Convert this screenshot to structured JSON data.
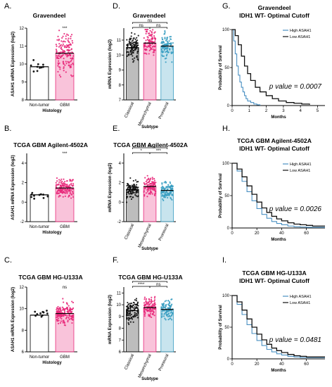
{
  "panels": [
    {
      "letter": "A.",
      "title": "Gravendeel"
    },
    {
      "letter": "B.",
      "title": "TCGA GBM Agilent-4502A"
    },
    {
      "letter": "C.",
      "title": "TCGA GBM HG-U133A"
    },
    {
      "letter": "D.",
      "title": "Gravendeel"
    },
    {
      "letter": "E.",
      "title": "TCGA GBM Agilent-4502A"
    },
    {
      "letter": "F.",
      "title": "TCGA GBM HG-U133A"
    },
    {
      "letter": "G.",
      "title": "Gravendeel",
      "title2": "IDH1 WT- Optimal Cutoff"
    },
    {
      "letter": "H.",
      "title": "TCGA GBM Agilent-4502A",
      "title2": "IDH1 WT- Optimal Cutoff"
    },
    {
      "letter": "I.",
      "title": "TCGA GBM HG-U133A",
      "title2": "IDH1 WT- Optimal Cutoff"
    }
  ],
  "chart_data": [
    {
      "id": "A",
      "type": "bar",
      "categories": [
        "Non-tumor",
        "GBM"
      ],
      "values": [
        9.85,
        10.6
      ],
      "ylim": [
        8,
        12
      ],
      "yticks": [
        8,
        9,
        10,
        11,
        12
      ],
      "xlabel": "Histology",
      "ylabel": "ASAH1 mRNA Expression (log2)",
      "annotations": [
        "***"
      ],
      "colors": [
        "#ffffff",
        "#e8297a"
      ]
    },
    {
      "id": "B",
      "type": "bar",
      "categories": [
        "Non-tumor",
        "GBM"
      ],
      "values": [
        0.75,
        1.45
      ],
      "ylim": [
        -2,
        5
      ],
      "yticks": [
        -2,
        0,
        2,
        4
      ],
      "xlabel": "Histology",
      "ylabel": "ASAH1 mRNA  Expression (log2)",
      "annotations": [
        "***"
      ],
      "colors": [
        "#ffffff",
        "#e8297a"
      ]
    },
    {
      "id": "C",
      "type": "bar",
      "categories": [
        "Non-tumor",
        "GBM"
      ],
      "values": [
        9.4,
        9.55
      ],
      "ylim": [
        6,
        12
      ],
      "yticks": [
        6,
        8,
        10,
        12
      ],
      "xlabel": "Histology",
      "ylabel": "ASAH1 mRNA  Expression (log2)",
      "annotations": [
        "ns"
      ],
      "colors": [
        "#ffffff",
        "#e8297a"
      ]
    },
    {
      "id": "D",
      "type": "bar",
      "categories": [
        "Classical",
        "Mesenchymal",
        "Proneural"
      ],
      "values": [
        10.5,
        10.8,
        10.6
      ],
      "ylim": [
        7,
        11.8
      ],
      "yticks": [
        7,
        8,
        9,
        10,
        11
      ],
      "xlabel": "Subtype",
      "ylabel": "mRNA  Expression (log2)",
      "comparisons": [
        "ns",
        "ns",
        "ns"
      ],
      "colors": [
        "#111111",
        "#e8297a",
        "#3a9ec2"
      ]
    },
    {
      "id": "E",
      "type": "bar",
      "categories": [
        "Classical",
        "Mesenchymal",
        "Proneural"
      ],
      "values": [
        1.3,
        1.6,
        1.2
      ],
      "ylim": [
        -2,
        5
      ],
      "yticks": [
        -2,
        0,
        2,
        4
      ],
      "xlabel": "Subtype",
      "ylabel": "mRNA  Expression (log2)",
      "comparisons": [
        "ns",
        "*",
        "***"
      ],
      "colors": [
        "#111111",
        "#e8297a",
        "#3a9ec2"
      ]
    },
    {
      "id": "F",
      "type": "bar",
      "categories": [
        "Classical",
        "Mesenchymal",
        "Proneural"
      ],
      "values": [
        9.5,
        9.75,
        9.6
      ],
      "ylim": [
        6,
        11.5
      ],
      "yticks": [
        6,
        7,
        8,
        9,
        10,
        11
      ],
      "xlabel": "Subtype",
      "ylabel": "mRNA  Expression (log2)",
      "comparisons": [
        "*",
        "****",
        "ns"
      ],
      "colors": [
        "#111111",
        "#e8297a",
        "#3a9ec2"
      ]
    },
    {
      "id": "G",
      "type": "line",
      "xlabel": "Months",
      "ylabel": "Probability of Survival",
      "xlim": [
        0,
        60
      ],
      "ylim": [
        0,
        100
      ],
      "xticks_labels": [
        "0",
        "1",
        "2",
        "3",
        "4",
        "5"
      ],
      "yticks": [
        0,
        50,
        100
      ],
      "pvalue": "p value = 0.0007",
      "series": [
        {
          "name": "High ASAH1",
          "color": "#4a90c2",
          "x": [
            0,
            1,
            2,
            3,
            4,
            5,
            6,
            7,
            8,
            9,
            10,
            12,
            14,
            16,
            18
          ],
          "y": [
            100,
            85,
            68,
            52,
            40,
            31,
            24,
            18,
            13,
            9,
            6,
            4,
            2,
            1,
            0
          ]
        },
        {
          "name": "Low ASAH1",
          "color": "#111111",
          "x": [
            0,
            2,
            4,
            6,
            8,
            10,
            12,
            15,
            18,
            22,
            26,
            30,
            35,
            40,
            45,
            50
          ],
          "y": [
            100,
            92,
            80,
            65,
            52,
            42,
            33,
            24,
            18,
            13,
            9,
            6,
            4,
            3,
            2,
            1
          ]
        }
      ]
    },
    {
      "id": "H",
      "type": "line",
      "xlabel": "Months",
      "ylabel": "Probability of Survival",
      "xlim": [
        0,
        75
      ],
      "ylim": [
        0,
        100
      ],
      "xticks": [
        0,
        20,
        40,
        60
      ],
      "yticks": [
        0,
        50,
        100
      ],
      "pvalue": "p value = 0.0026",
      "series": [
        {
          "name": "High ASAH1",
          "color": "#4a90c2",
          "x": [
            0,
            4,
            8,
            12,
            16,
            20,
            24,
            28,
            32,
            36,
            40,
            45,
            50,
            55,
            60,
            65,
            70,
            75
          ],
          "y": [
            100,
            88,
            72,
            56,
            42,
            30,
            21,
            15,
            10,
            7,
            5,
            3,
            2,
            1.5,
            1,
            1,
            1,
            1
          ]
        },
        {
          "name": "Low ASAH1",
          "color": "#111111",
          "x": [
            0,
            4,
            8,
            12,
            16,
            20,
            24,
            28,
            32,
            36,
            40,
            45,
            50,
            55,
            60,
            65,
            70,
            75
          ],
          "y": [
            100,
            91,
            79,
            65,
            52,
            40,
            31,
            24,
            18,
            14,
            11,
            8,
            6,
            5,
            4,
            3,
            3,
            3
          ]
        }
      ]
    },
    {
      "id": "I",
      "type": "line",
      "xlabel": "Months",
      "ylabel": "Probability of Survival",
      "xlim": [
        0,
        75
      ],
      "ylim": [
        0,
        100
      ],
      "xticks": [
        0,
        20,
        40,
        60
      ],
      "yticks": [
        0,
        50,
        100
      ],
      "pvalue": "p value = 0.0481",
      "series": [
        {
          "name": "High ASAH1",
          "color": "#4a90c2",
          "x": [
            0,
            4,
            8,
            12,
            16,
            20,
            24,
            28,
            32,
            36,
            40,
            45,
            50,
            55,
            60,
            65,
            70,
            75
          ],
          "y": [
            100,
            86,
            70,
            54,
            40,
            29,
            21,
            15,
            11,
            8,
            6,
            4,
            3,
            2,
            2,
            2,
            2,
            2
          ]
        },
        {
          "name": "Low ASAH1",
          "color": "#111111",
          "x": [
            0,
            4,
            8,
            12,
            16,
            20,
            24,
            28,
            32,
            36,
            40,
            45,
            50,
            55,
            60,
            65,
            70,
            75
          ],
          "y": [
            100,
            90,
            77,
            63,
            50,
            39,
            30,
            23,
            17,
            13,
            10,
            7,
            5,
            4,
            3,
            3,
            3,
            3
          ]
        }
      ]
    }
  ]
}
